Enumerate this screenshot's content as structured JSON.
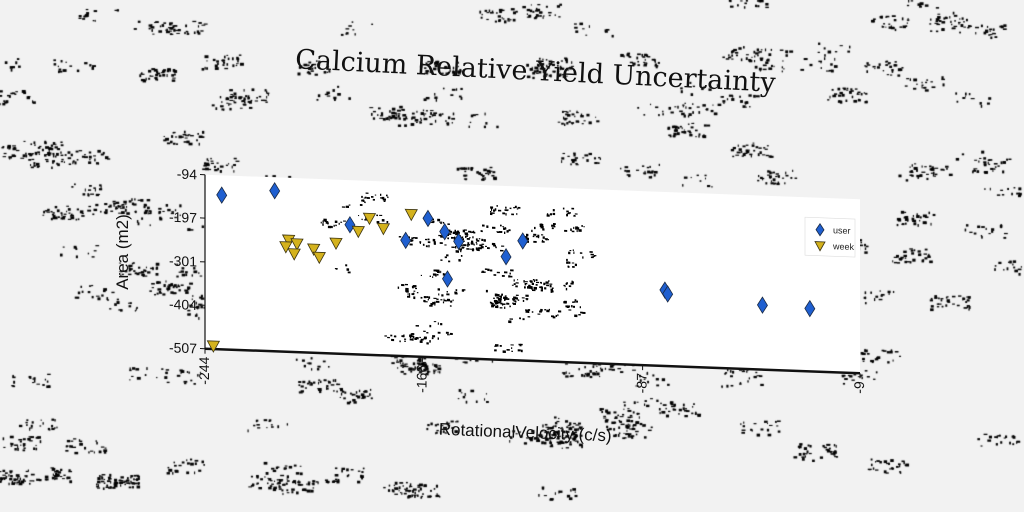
{
  "chart_data": {
    "type": "scatter",
    "title": "Calcium Relative Yield Uncertainty",
    "xlabel": "RotationalVelocity (c/s)",
    "ylabel": "Area (m2)",
    "xlim": [
      -244,
      -9
    ],
    "ylim": [
      -507,
      -94
    ],
    "x_ticks": [
      "-244",
      "-166",
      "-87",
      "-9"
    ],
    "y_ticks": [
      "-94",
      "-197",
      "-301",
      "-404",
      "-507"
    ],
    "legend_position": "top-right",
    "grid": false,
    "series": [
      {
        "name": "user",
        "marker": "diamond",
        "color": "#1f5fd0",
        "points": [
          {
            "x": -238,
            "y": -141
          },
          {
            "x": -219,
            "y": -126
          },
          {
            "x": -192,
            "y": -200
          },
          {
            "x": -172,
            "y": -232
          },
          {
            "x": -164,
            "y": -178
          },
          {
            "x": -158,
            "y": -208
          },
          {
            "x": -153,
            "y": -230
          },
          {
            "x": -157,
            "y": -320
          },
          {
            "x": -136,
            "y": -262
          },
          {
            "x": -130,
            "y": -223
          },
          {
            "x": -79,
            "y": -327
          },
          {
            "x": -78,
            "y": -336
          },
          {
            "x": -44,
            "y": -354
          },
          {
            "x": -27,
            "y": -358
          }
        ]
      },
      {
        "name": "week",
        "marker": "triangle-down",
        "color": "#d4b21d",
        "points": [
          {
            "x": -241,
            "y": -500
          },
          {
            "x": -214,
            "y": -242
          },
          {
            "x": -215,
            "y": -258
          },
          {
            "x": -211,
            "y": -250
          },
          {
            "x": -212,
            "y": -274
          },
          {
            "x": -205,
            "y": -261
          },
          {
            "x": -203,
            "y": -280
          },
          {
            "x": -197,
            "y": -245
          },
          {
            "x": -189,
            "y": -215
          },
          {
            "x": -185,
            "y": -183
          },
          {
            "x": -180,
            "y": -206
          },
          {
            "x": -170,
            "y": -170
          }
        ]
      }
    ]
  }
}
